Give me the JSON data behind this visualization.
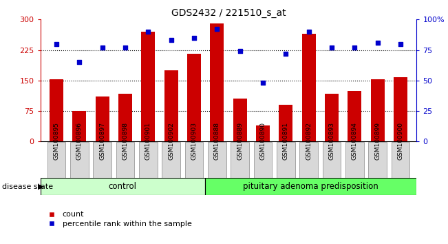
{
  "title": "GDS2432 / 221510_s_at",
  "samples": [
    "GSM100895",
    "GSM100896",
    "GSM100897",
    "GSM100898",
    "GSM100901",
    "GSM100902",
    "GSM100903",
    "GSM100888",
    "GSM100889",
    "GSM100890",
    "GSM100891",
    "GSM100892",
    "GSM100893",
    "GSM100894",
    "GSM100899",
    "GSM100900"
  ],
  "bar_values": [
    153,
    75,
    110,
    118,
    270,
    175,
    215,
    290,
    105,
    40,
    90,
    265,
    118,
    125,
    153,
    158
  ],
  "dot_values": [
    80,
    65,
    77,
    77,
    90,
    83,
    85,
    92,
    74,
    48,
    72,
    90,
    77,
    77,
    81,
    80
  ],
  "bar_color": "#cc0000",
  "dot_color": "#0000cc",
  "ylim_left": [
    0,
    300
  ],
  "ylim_right": [
    0,
    100
  ],
  "yticks_left": [
    0,
    75,
    150,
    225,
    300
  ],
  "yticks_right": [
    0,
    25,
    50,
    75,
    100
  ],
  "ytick_labels_right": [
    "0",
    "25",
    "50",
    "75",
    "100%"
  ],
  "hlines": [
    75,
    150,
    225
  ],
  "control_count": 7,
  "control_label": "control",
  "disease_label": "pituitary adenoma predisposition",
  "group_label": "disease state",
  "legend_bar": "count",
  "legend_dot": "percentile rank within the sample",
  "control_color": "#ccffcc",
  "disease_color": "#66ff66",
  "left_axis_color": "#cc0000",
  "right_axis_color": "#0000cc",
  "bar_width": 0.6
}
